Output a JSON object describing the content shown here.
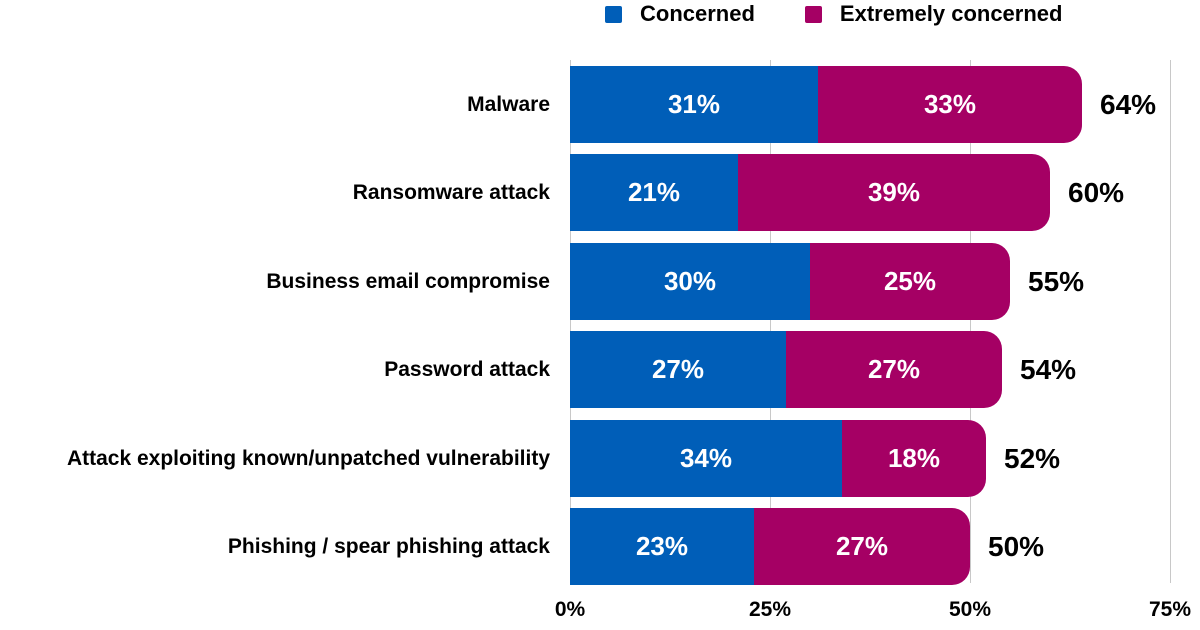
{
  "legend": [
    {
      "label": "Concerned",
      "color": "#005EB8"
    },
    {
      "label": "Extremely concerned",
      "color": "#A50064"
    }
  ],
  "axis": {
    "ticks": [
      "0%",
      "25%",
      "50%",
      "75%"
    ]
  },
  "rows": [
    {
      "category": "Malware",
      "concerned": "31%",
      "extremely": "33%",
      "total": "64%"
    },
    {
      "category": "Ransomware attack",
      "concerned": "21%",
      "extremely": "39%",
      "total": "60%"
    },
    {
      "category": "Business email compromise",
      "concerned": "30%",
      "extremely": "25%",
      "total": "55%"
    },
    {
      "category": "Password attack",
      "concerned": "27%",
      "extremely": "27%",
      "total": "54%"
    },
    {
      "category": "Attack exploiting known/unpatched vulnerability",
      "concerned": "34%",
      "extremely": "18%",
      "total": "52%"
    },
    {
      "category": "Phishing / spear phishing attack",
      "concerned": "23%",
      "extremely": "27%",
      "total": "50%"
    }
  ],
  "chart_data": {
    "type": "bar",
    "orientation": "horizontal",
    "stacked": true,
    "title": "",
    "xlabel": "",
    "ylabel": "",
    "xlim": [
      0,
      75
    ],
    "x_ticks": [
      "0%",
      "25%",
      "50%",
      "75%"
    ],
    "grid": true,
    "legend_position": "top",
    "categories": [
      "Malware",
      "Ransomware attack",
      "Business email compromise",
      "Password attack",
      "Attack exploiting known/unpatched vulnerability",
      "Phishing / spear phishing attack"
    ],
    "series": [
      {
        "name": "Concerned",
        "color": "#005EB8",
        "values": [
          31,
          21,
          30,
          27,
          34,
          23
        ]
      },
      {
        "name": "Extremely concerned",
        "color": "#A50064",
        "values": [
          33,
          39,
          25,
          27,
          18,
          27
        ]
      }
    ],
    "totals": [
      64,
      60,
      55,
      54,
      52,
      50
    ]
  }
}
